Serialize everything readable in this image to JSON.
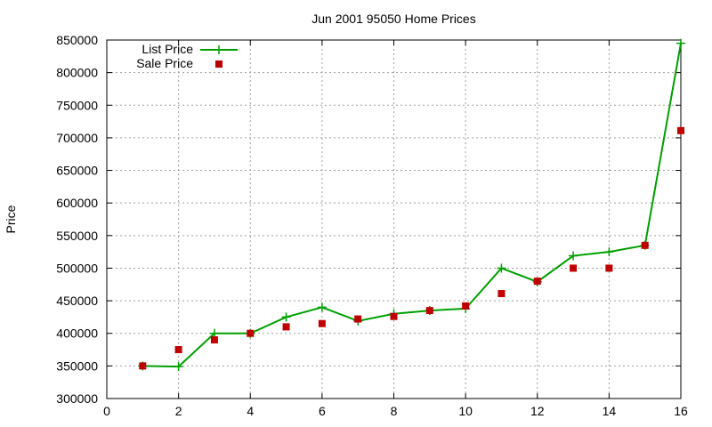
{
  "chart_data": {
    "type": "line",
    "title": "Jun 2001 95050 Home Prices",
    "xlabel": "",
    "ylabel": "Price",
    "xlim": [
      0,
      16
    ],
    "ylim": [
      300000,
      850000
    ],
    "x_ticks": [
      0,
      2,
      4,
      6,
      8,
      10,
      12,
      14,
      16
    ],
    "y_ticks": [
      300000,
      350000,
      400000,
      450000,
      500000,
      550000,
      600000,
      650000,
      700000,
      750000,
      800000,
      850000
    ],
    "grid": true,
    "legend_position": "top-left",
    "series": [
      {
        "name": "List Price",
        "style": "line-points",
        "color": "#00a000",
        "marker": "plus",
        "x": [
          1,
          2,
          3,
          4,
          5,
          6,
          7,
          8,
          9,
          10,
          11,
          12,
          13,
          14,
          15,
          16
        ],
        "y": [
          350000,
          349000,
          400000,
          400000,
          425000,
          440000,
          419000,
          430000,
          435000,
          438000,
          500000,
          479000,
          519000,
          525000,
          535000,
          845000
        ]
      },
      {
        "name": "Sale Price",
        "style": "points",
        "color": "#c00000",
        "marker": "square",
        "x": [
          1,
          2,
          3,
          4,
          5,
          6,
          7,
          8,
          9,
          10,
          11,
          12,
          13,
          14,
          15,
          16
        ],
        "y": [
          350000,
          375000,
          390000,
          400000,
          410000,
          415000,
          422000,
          426000,
          435000,
          442000,
          461000,
          480000,
          500000,
          500000,
          535000,
          711000
        ]
      }
    ]
  }
}
